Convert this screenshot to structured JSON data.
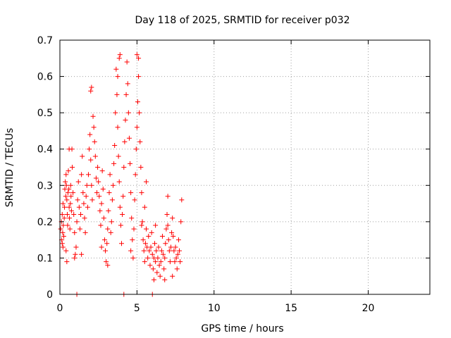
{
  "chart_data": {
    "type": "scatter",
    "title": "Day 118 of 2025, SRMTID for receiver p032",
    "xlabel": "GPS time / hours",
    "ylabel": "SRMTID / TECUs",
    "xlim": [
      0,
      24
    ],
    "ylim": [
      0,
      0.7
    ],
    "xticks": [
      0,
      5,
      10,
      15,
      20
    ],
    "yticks": [
      0,
      0.1,
      0.2,
      0.3,
      0.4,
      0.5,
      0.6,
      0.7
    ],
    "xtick_labels": [
      "0",
      "5",
      "10",
      "15",
      "20"
    ],
    "ytick_labels": [
      "0",
      "0.1",
      "0.2",
      "0.3",
      "0.4",
      "0.5",
      "0.6",
      "0.7"
    ],
    "grid": true,
    "marker": "+",
    "color": "#ff0000",
    "series": [
      {
        "name": "p032",
        "points": [
          [
            0.05,
            0.18
          ],
          [
            0.1,
            0.2
          ],
          [
            0.12,
            0.15
          ],
          [
            0.15,
            0.22
          ],
          [
            0.18,
            0.17
          ],
          [
            0.2,
            0.13
          ],
          [
            0.22,
            0.19
          ],
          [
            0.25,
            0.16
          ],
          [
            0.28,
            0.21
          ],
          [
            0.3,
            0.24
          ],
          [
            0.32,
            0.29
          ],
          [
            0.35,
            0.31
          ],
          [
            0.38,
            0.27
          ],
          [
            0.4,
            0.33
          ],
          [
            0.42,
            0.3
          ],
          [
            0.45,
            0.26
          ],
          [
            0.48,
            0.22
          ],
          [
            0.5,
            0.19
          ],
          [
            0.52,
            0.28
          ],
          [
            0.55,
            0.34
          ],
          [
            0.58,
            0.29
          ],
          [
            0.6,
            0.24
          ],
          [
            0.62,
            0.21
          ],
          [
            0.65,
            0.18
          ],
          [
            0.68,
            0.25
          ],
          [
            0.7,
            0.3
          ],
          [
            0.72,
            0.27
          ],
          [
            0.75,
            0.23
          ],
          [
            0.78,
            0.4
          ],
          [
            0.6,
            0.4
          ],
          [
            0.8,
            0.35
          ],
          [
            0.85,
            0.28
          ],
          [
            0.9,
            0.22
          ],
          [
            0.95,
            0.17
          ],
          [
            1.0,
            0.11
          ],
          [
            1.05,
            0.13
          ],
          [
            1.1,
            0.2
          ],
          [
            1.15,
            0.26
          ],
          [
            1.2,
            0.31
          ],
          [
            1.25,
            0.24
          ],
          [
            1.1,
            0.0
          ],
          [
            0.95,
            0.1
          ],
          [
            0.4,
            0.12
          ],
          [
            0.45,
            0.09
          ],
          [
            0.2,
            0.25
          ],
          [
            1.3,
            0.18
          ],
          [
            1.35,
            0.22
          ],
          [
            1.4,
            0.33
          ],
          [
            1.45,
            0.38
          ],
          [
            1.5,
            0.28
          ],
          [
            1.55,
            0.25
          ],
          [
            1.6,
            0.21
          ],
          [
            1.65,
            0.17
          ],
          [
            1.7,
            0.27
          ],
          [
            1.75,
            0.3
          ],
          [
            1.8,
            0.24
          ],
          [
            1.85,
            0.33
          ],
          [
            1.9,
            0.4
          ],
          [
            1.95,
            0.44
          ],
          [
            2.0,
            0.37
          ],
          [
            2.05,
            0.3
          ],
          [
            2.1,
            0.26
          ],
          [
            2.15,
            0.49
          ],
          [
            2.2,
            0.46
          ],
          [
            2.25,
            0.42
          ],
          [
            2.0,
            0.56
          ],
          [
            2.05,
            0.57
          ],
          [
            2.3,
            0.38
          ],
          [
            2.35,
            0.32
          ],
          [
            2.4,
            0.28
          ],
          [
            2.45,
            0.35
          ],
          [
            2.5,
            0.31
          ],
          [
            2.55,
            0.27
          ],
          [
            2.6,
            0.23
          ],
          [
            2.65,
            0.19
          ],
          [
            2.7,
            0.25
          ],
          [
            2.75,
            0.34
          ],
          [
            2.8,
            0.29
          ],
          [
            2.85,
            0.21
          ],
          [
            2.9,
            0.15
          ],
          [
            2.95,
            0.12
          ],
          [
            3.0,
            0.09
          ],
          [
            3.05,
            0.14
          ],
          [
            3.1,
            0.18
          ],
          [
            3.15,
            0.23
          ],
          [
            3.2,
            0.28
          ],
          [
            3.25,
            0.33
          ],
          [
            3.3,
            0.17
          ],
          [
            3.35,
            0.2
          ],
          [
            3.4,
            0.26
          ],
          [
            3.45,
            0.3
          ],
          [
            3.5,
            0.36
          ],
          [
            3.55,
            0.41
          ],
          [
            3.6,
            0.5
          ],
          [
            3.65,
            0.62
          ],
          [
            3.7,
            0.55
          ],
          [
            3.75,
            0.46
          ],
          [
            3.8,
            0.38
          ],
          [
            3.85,
            0.31
          ],
          [
            3.9,
            0.24
          ],
          [
            3.95,
            0.19
          ],
          [
            4.0,
            0.14
          ],
          [
            3.85,
            0.65
          ],
          [
            3.9,
            0.66
          ],
          [
            3.75,
            0.6
          ],
          [
            4.05,
            0.22
          ],
          [
            4.1,
            0.27
          ],
          [
            4.15,
            0.35
          ],
          [
            4.2,
            0.42
          ],
          [
            4.25,
            0.48
          ],
          [
            4.3,
            0.55
          ],
          [
            4.35,
            0.64
          ],
          [
            4.4,
            0.58
          ],
          [
            4.45,
            0.5
          ],
          [
            4.5,
            0.43
          ],
          [
            4.55,
            0.36
          ],
          [
            4.6,
            0.28
          ],
          [
            4.65,
            0.21
          ],
          [
            4.7,
            0.15
          ],
          [
            4.75,
            0.1
          ],
          [
            4.8,
            0.18
          ],
          [
            4.85,
            0.26
          ],
          [
            4.9,
            0.33
          ],
          [
            4.95,
            0.4
          ],
          [
            5.0,
            0.46
          ],
          [
            5.05,
            0.53
          ],
          [
            5.1,
            0.6
          ],
          [
            5.0,
            0.66
          ],
          [
            5.1,
            0.65
          ],
          [
            5.15,
            0.5
          ],
          [
            5.2,
            0.42
          ],
          [
            5.25,
            0.35
          ],
          [
            5.3,
            0.28
          ],
          [
            5.35,
            0.2
          ],
          [
            5.4,
            0.15
          ],
          [
            5.45,
            0.12
          ],
          [
            5.5,
            0.09
          ],
          [
            5.55,
            0.14
          ],
          [
            5.6,
            0.18
          ],
          [
            5.65,
            0.13
          ],
          [
            5.7,
            0.1
          ],
          [
            5.75,
            0.16
          ],
          [
            5.8,
            0.12
          ],
          [
            5.85,
            0.08
          ],
          [
            5.9,
            0.13
          ],
          [
            5.95,
            0.17
          ],
          [
            6.0,
            0.11
          ],
          [
            6.05,
            0.07
          ],
          [
            6.1,
            0.1
          ],
          [
            6.15,
            0.14
          ],
          [
            6.2,
            0.09
          ],
          [
            6.25,
            0.12
          ],
          [
            6.3,
            0.06
          ],
          [
            6.35,
            0.1
          ],
          [
            6.4,
            0.13
          ],
          [
            6.45,
            0.08
          ],
          [
            6.5,
            0.05
          ],
          [
            6.55,
            0.09
          ],
          [
            6.6,
            0.12
          ],
          [
            6.65,
            0.16
          ],
          [
            6.7,
            0.11
          ],
          [
            6.75,
            0.07
          ],
          [
            6.8,
            0.1
          ],
          [
            6.85,
            0.14
          ],
          [
            6.9,
            0.18
          ],
          [
            6.95,
            0.22
          ],
          [
            7.0,
            0.19
          ],
          [
            7.05,
            0.15
          ],
          [
            7.1,
            0.12
          ],
          [
            7.15,
            0.09
          ],
          [
            7.2,
            0.13
          ],
          [
            7.25,
            0.17
          ],
          [
            7.3,
            0.21
          ],
          [
            7.35,
            0.16
          ],
          [
            7.4,
            0.12
          ],
          [
            7.45,
            0.09
          ],
          [
            7.5,
            0.13
          ],
          [
            7.55,
            0.1
          ],
          [
            7.6,
            0.07
          ],
          [
            7.65,
            0.11
          ],
          [
            7.7,
            0.15
          ],
          [
            7.75,
            0.12
          ],
          [
            7.8,
            0.09
          ],
          [
            7.85,
            0.2
          ],
          [
            7.9,
            0.26
          ],
          [
            6.0,
            0.0
          ],
          [
            4.15,
            0.0
          ],
          [
            6.8,
            0.04
          ],
          [
            7.0,
            0.27
          ],
          [
            6.2,
            0.19
          ],
          [
            5.5,
            0.24
          ],
          [
            5.6,
            0.31
          ],
          [
            5.3,
            0.19
          ],
          [
            6.1,
            0.04
          ],
          [
            0.15,
            0.14
          ],
          [
            1.4,
            0.11
          ],
          [
            2.7,
            0.13
          ],
          [
            3.1,
            0.08
          ],
          [
            4.6,
            0.12
          ],
          [
            7.3,
            0.05
          ]
        ]
      }
    ]
  }
}
